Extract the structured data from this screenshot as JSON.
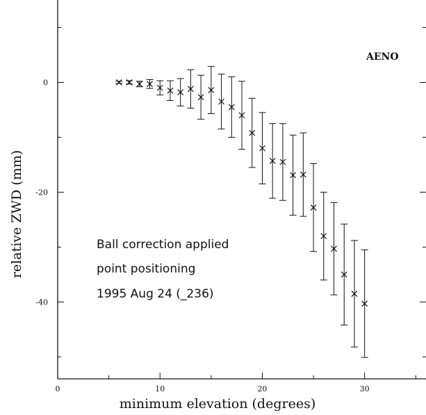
{
  "chart_data": {
    "type": "scatter",
    "xlabel": "minimum elevation (degrees)",
    "ylabel": "relative ZWD (mm)",
    "xlim": [
      0,
      36
    ],
    "ylim": [
      -54,
      15
    ],
    "x_ticks": [
      0,
      10,
      20,
      30
    ],
    "y_ticks": [
      0,
      -20,
      -40
    ],
    "station_label": "AENO",
    "annotations": [
      "Ball correction applied",
      "point positioning",
      "1995 Aug 24 (_236)"
    ],
    "marker": "x",
    "grid": false,
    "series": [
      {
        "points": [
          {
            "x": 6,
            "y": 0.0,
            "err": 0.2
          },
          {
            "x": 7,
            "y": 0.0,
            "err": 0.3
          },
          {
            "x": 8,
            "y": -0.3,
            "err": 0.5
          },
          {
            "x": 9,
            "y": -0.3,
            "err": 0.8
          },
          {
            "x": 10,
            "y": -1.0,
            "err": 1.3
          },
          {
            "x": 11,
            "y": -1.5,
            "err": 1.8
          },
          {
            "x": 12,
            "y": -1.8,
            "err": 2.5
          },
          {
            "x": 13,
            "y": -1.2,
            "err": 3.5
          },
          {
            "x": 14,
            "y": -2.7,
            "err": 4.0
          },
          {
            "x": 15,
            "y": -1.4,
            "err": 4.3
          },
          {
            "x": 16,
            "y": -3.5,
            "err": 5.0
          },
          {
            "x": 17,
            "y": -4.5,
            "err": 5.5
          },
          {
            "x": 18,
            "y": -6.0,
            "err": 6.2
          },
          {
            "x": 19,
            "y": -9.2,
            "err": 6.3
          },
          {
            "x": 20,
            "y": -12.0,
            "err": 6.5
          },
          {
            "x": 21,
            "y": -14.3,
            "err": 6.8
          },
          {
            "x": 22,
            "y": -14.5,
            "err": 7.0
          },
          {
            "x": 23,
            "y": -16.9,
            "err": 7.3
          },
          {
            "x": 24,
            "y": -16.8,
            "err": 7.6
          },
          {
            "x": 25,
            "y": -22.8,
            "err": 8.0
          },
          {
            "x": 26,
            "y": -28.0,
            "err": 8.0
          },
          {
            "x": 27,
            "y": -30.3,
            "err": 8.4
          },
          {
            "x": 28,
            "y": -35.0,
            "err": 9.2
          },
          {
            "x": 29,
            "y": -38.5,
            "err": 9.7
          },
          {
            "x": 30,
            "y": -40.3,
            "err": 9.8
          }
        ]
      }
    ]
  }
}
